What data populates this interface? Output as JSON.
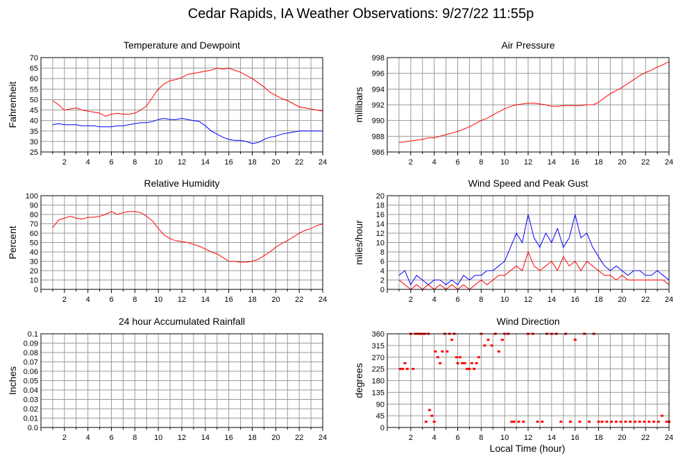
{
  "title": "Cedar Rapids, IA Weather Observations: 9/27/22 11:55p",
  "xlabel": "Local Time (hour)",
  "colors": {
    "red": "#ff0000",
    "blue": "#0000ff",
    "grid": "#9a9a9a"
  },
  "chart_data": [
    {
      "type": "line",
      "title": "Temperature and Dewpoint",
      "ylabel": "Fahrenheit",
      "xlim": [
        0,
        24
      ],
      "ylim": [
        25,
        70
      ],
      "grid": true,
      "xticks": [
        "2",
        "4",
        "6",
        "8",
        "10",
        "12",
        "14",
        "16",
        "18",
        "20",
        "22",
        "24"
      ],
      "yticks": [
        "25",
        "30",
        "35",
        "40",
        "45",
        "50",
        "55",
        "60",
        "65",
        "70"
      ],
      "series": [
        {
          "color": "#ff0000",
          "x": [
            1,
            1.5,
            2,
            2.5,
            3,
            3.5,
            4,
            4.5,
            5,
            5.5,
            6,
            6.5,
            7,
            7.5,
            8,
            8.5,
            9,
            9.5,
            10,
            10.5,
            11,
            11.5,
            12,
            12.5,
            13,
            13.5,
            14,
            14.5,
            15,
            15.5,
            16,
            16.5,
            17,
            17.5,
            18,
            18.5,
            19,
            19.5,
            20,
            20.5,
            21,
            21.5,
            22,
            22.5,
            23,
            23.5,
            24
          ],
          "y": [
            49.5,
            47.5,
            45,
            45.5,
            46,
            45,
            44.5,
            44,
            43.5,
            42,
            43,
            43.5,
            43,
            43,
            43.5,
            45,
            47,
            51,
            55,
            57.5,
            59,
            59.5,
            60.5,
            62,
            62.5,
            63,
            63.5,
            64,
            65,
            64.5,
            65,
            64,
            63,
            61.5,
            60,
            58,
            56,
            53.5,
            52,
            50.5,
            49.5,
            48,
            46.5,
            46,
            45.5,
            45,
            44.5
          ]
        },
        {
          "color": "#0000ff",
          "x": [
            1,
            1.5,
            2,
            2.5,
            3,
            3.5,
            4,
            4.5,
            5,
            5.5,
            6,
            6.5,
            7,
            7.5,
            8,
            8.5,
            9,
            9.5,
            10,
            10.5,
            11,
            11.5,
            12,
            12.5,
            13,
            13.5,
            14,
            14.5,
            15,
            15.5,
            16,
            16.5,
            17,
            17.5,
            18,
            18.5,
            19,
            19.5,
            20,
            20.5,
            21,
            21.5,
            22,
            22.5,
            23,
            23.5,
            24
          ],
          "y": [
            38,
            38.5,
            38,
            38,
            38,
            37.5,
            37.5,
            37.5,
            37,
            37,
            37,
            37.5,
            37.5,
            38,
            38.5,
            39,
            39,
            39.5,
            40.5,
            41,
            40.5,
            40.5,
            41,
            40.5,
            40,
            39.5,
            37.5,
            35,
            33.5,
            32,
            31,
            30.5,
            30.5,
            30,
            29,
            29.5,
            31,
            32,
            32.5,
            33.5,
            34,
            34.5,
            35,
            35,
            35,
            35,
            35
          ]
        }
      ]
    },
    {
      "type": "line",
      "title": "Air Pressure",
      "ylabel": "millibars",
      "xlim": [
        0,
        24
      ],
      "ylim": [
        986,
        998
      ],
      "grid": true,
      "xticks": [
        "2",
        "4",
        "6",
        "8",
        "10",
        "12",
        "14",
        "16",
        "18",
        "20",
        "22",
        "24"
      ],
      "yticks": [
        "986",
        "988",
        "990",
        "992",
        "994",
        "996",
        "998"
      ],
      "series": [
        {
          "color": "#ff0000",
          "x": [
            1,
            1.5,
            2,
            2.5,
            3,
            3.5,
            4,
            4.5,
            5,
            5.5,
            6,
            6.5,
            7,
            7.5,
            8,
            8.5,
            9,
            9.5,
            10,
            10.5,
            11,
            11.5,
            12,
            12.5,
            13,
            13.5,
            14,
            14.5,
            15,
            15.5,
            16,
            16.5,
            17,
            17.5,
            18,
            18.5,
            19,
            19.5,
            20,
            20.5,
            21,
            21.5,
            22,
            22.5,
            23,
            23.5,
            24
          ],
          "y": [
            987.2,
            987.3,
            987.4,
            987.5,
            987.6,
            987.8,
            987.8,
            988.0,
            988.2,
            988.4,
            988.6,
            988.9,
            989.2,
            989.6,
            990.0,
            990.3,
            990.7,
            991.1,
            991.5,
            991.8,
            992.0,
            992.1,
            992.2,
            992.2,
            992.1,
            992.0,
            991.8,
            991.8,
            991.9,
            991.9,
            991.9,
            991.9,
            992.0,
            992.0,
            992.3,
            992.9,
            993.4,
            993.8,
            994.2,
            994.7,
            995.2,
            995.7,
            996.1,
            996.4,
            996.8,
            997.1,
            997.5
          ]
        }
      ]
    },
    {
      "type": "line",
      "title": "Relative Humidity",
      "ylabel": "Percent",
      "xlim": [
        0,
        24
      ],
      "ylim": [
        0,
        100
      ],
      "grid": true,
      "xticks": [
        "2",
        "4",
        "6",
        "8",
        "10",
        "12",
        "14",
        "16",
        "18",
        "20",
        "22",
        "24"
      ],
      "yticks": [
        "0",
        "10",
        "20",
        "30",
        "40",
        "50",
        "60",
        "70",
        "80",
        "90",
        "100"
      ],
      "series": [
        {
          "color": "#ff0000",
          "x": [
            1,
            1.5,
            2,
            2.5,
            3,
            3.5,
            4,
            4.5,
            5,
            5.5,
            6,
            6.5,
            7,
            7.5,
            8,
            8.5,
            9,
            9.5,
            10,
            10.5,
            11,
            11.5,
            12,
            12.5,
            13,
            13.5,
            14,
            14.5,
            15,
            15.5,
            16,
            16.5,
            17,
            17.5,
            18,
            18.5,
            19,
            19.5,
            20,
            20.5,
            21,
            21.5,
            22,
            22.5,
            23,
            23.5,
            24
          ],
          "y": [
            66,
            74,
            76,
            78,
            76,
            75,
            77,
            77,
            78,
            80,
            83,
            80,
            82,
            83,
            83,
            82,
            78,
            73,
            65,
            58,
            54,
            52,
            51,
            50,
            48,
            46,
            43,
            40,
            38,
            34,
            30,
            30,
            29,
            29,
            30,
            32,
            36,
            40,
            45,
            49,
            52,
            56,
            60,
            63,
            65,
            68,
            70
          ]
        }
      ]
    },
    {
      "type": "line",
      "title": "Wind Speed and Peak Gust",
      "ylabel": "miles/hour",
      "xlim": [
        0,
        24
      ],
      "ylim": [
        0,
        20
      ],
      "grid": true,
      "xticks": [
        "2",
        "4",
        "6",
        "8",
        "10",
        "12",
        "14",
        "16",
        "18",
        "20",
        "22",
        "24"
      ],
      "yticks": [
        "0",
        "2",
        "4",
        "6",
        "8",
        "10",
        "12",
        "14",
        "16",
        "18",
        "20"
      ],
      "series": [
        {
          "color": "#0000ff",
          "x": [
            1,
            1.5,
            2,
            2.5,
            3,
            3.5,
            4,
            4.5,
            5,
            5.5,
            6,
            6.5,
            7,
            7.5,
            8,
            8.5,
            9,
            9.5,
            10,
            10.5,
            11,
            11.5,
            12,
            12.5,
            13,
            13.5,
            14,
            14.5,
            15,
            15.5,
            16,
            16.5,
            17,
            17.5,
            18,
            18.5,
            19,
            19.5,
            20,
            20.5,
            21,
            21.5,
            22,
            22.5,
            23,
            23.5,
            24
          ],
          "y": [
            3,
            4,
            1,
            3,
            2,
            1,
            2,
            2,
            1,
            2,
            1,
            3,
            2,
            3,
            3,
            4,
            4,
            5,
            6,
            9,
            12,
            10,
            16,
            11,
            9,
            12,
            10,
            13,
            9,
            11,
            16,
            11,
            12,
            9,
            7,
            5,
            4,
            5,
            4,
            3,
            4,
            4,
            3,
            3,
            4,
            3,
            2
          ]
        },
        {
          "color": "#ff0000",
          "x": [
            1,
            1.5,
            2,
            2.5,
            3,
            3.5,
            4,
            4.5,
            5,
            5.5,
            6,
            6.5,
            7,
            7.5,
            8,
            8.5,
            9,
            9.5,
            10,
            10.5,
            11,
            11.5,
            12,
            12.5,
            13,
            13.5,
            14,
            14.5,
            15,
            15.5,
            16,
            16.5,
            17,
            17.5,
            18,
            18.5,
            19,
            19.5,
            20,
            20.5,
            21,
            21.5,
            22,
            22.5,
            23,
            23.5,
            24
          ],
          "y": [
            2,
            1,
            0,
            1,
            0,
            1,
            0,
            1,
            0,
            1,
            0,
            1,
            0,
            1,
            2,
            1,
            2,
            3,
            3,
            4,
            5,
            4,
            8,
            5,
            4,
            5,
            6,
            4,
            7,
            5,
            6,
            4,
            6,
            5,
            4,
            3,
            3,
            2,
            3,
            2,
            2,
            2,
            2,
            2,
            2,
            2,
            1
          ]
        }
      ]
    },
    {
      "type": "line",
      "title": "24 hour Accumulated Rainfall",
      "ylabel": "Inches",
      "xlim": [
        0,
        24
      ],
      "ylim": [
        0,
        0.1
      ],
      "grid": true,
      "xticks": [
        "2",
        "4",
        "6",
        "8",
        "10",
        "12",
        "14",
        "16",
        "18",
        "20",
        "22",
        "24"
      ],
      "yticks": [
        "0.0",
        "0.01",
        "0.02",
        "0.03",
        "0.04",
        "0.05",
        "0.06",
        "0.07",
        "0.08",
        "0.09",
        "0.1"
      ],
      "series": [
        {
          "color": "#ff0000",
          "x": [
            1,
            24
          ],
          "y": [
            0,
            0
          ]
        }
      ]
    },
    {
      "type": "scatter",
      "title": "Wind Direction",
      "ylabel": "degrees",
      "xlim": [
        0,
        24
      ],
      "ylim": [
        0,
        360
      ],
      "grid": true,
      "xticks": [
        "2",
        "4",
        "6",
        "8",
        "10",
        "12",
        "14",
        "16",
        "18",
        "20",
        "22",
        "24"
      ],
      "yticks": [
        "0",
        "45",
        "90",
        "135",
        "180",
        "225",
        "270",
        "315",
        "360"
      ],
      "series": [
        {
          "color": "#ff0000",
          "x": [
            1.1,
            1.3,
            1.5,
            1.7,
            2.0,
            2.2,
            2.4,
            2.6,
            2.8,
            3.0,
            3.2,
            3.3,
            3.5,
            3.6,
            3.8,
            4.0,
            4.1,
            4.3,
            4.5,
            4.7,
            4.9,
            5.1,
            5.3,
            5.5,
            5.7,
            5.9,
            6.0,
            6.2,
            6.4,
            6.6,
            6.8,
            7.0,
            7.2,
            7.4,
            7.6,
            7.8,
            8.0,
            8.3,
            8.6,
            8.9,
            9.2,
            9.5,
            9.8,
            10.0,
            10.3,
            10.6,
            10.8,
            11.2,
            11.6,
            12.0,
            12.4,
            12.8,
            13.2,
            13.6,
            14.0,
            14.4,
            14.8,
            15.2,
            15.6,
            16.0,
            16.4,
            16.8,
            17.2,
            17.6,
            18.0,
            18.3,
            18.7,
            19.1,
            19.5,
            19.9,
            20.3,
            20.7,
            21.1,
            21.5,
            21.9,
            22.3,
            22.7,
            23.1,
            23.4,
            23.8,
            24.0
          ],
          "y": [
            225,
            225,
            247,
            225,
            360,
            225,
            360,
            360,
            360,
            360,
            360,
            22,
            360,
            67,
            45,
            22,
            292,
            270,
            247,
            292,
            360,
            292,
            360,
            337,
            360,
            270,
            247,
            270,
            247,
            247,
            225,
            225,
            247,
            225,
            247,
            270,
            360,
            315,
            337,
            315,
            360,
            292,
            337,
            360,
            360,
            22,
            22,
            22,
            22,
            360,
            360,
            22,
            22,
            360,
            360,
            360,
            22,
            360,
            22,
            337,
            22,
            360,
            22,
            360,
            22,
            22,
            22,
            22,
            22,
            22,
            22,
            22,
            22,
            22,
            22,
            22,
            22,
            22,
            45,
            22,
            22
          ]
        }
      ]
    }
  ]
}
